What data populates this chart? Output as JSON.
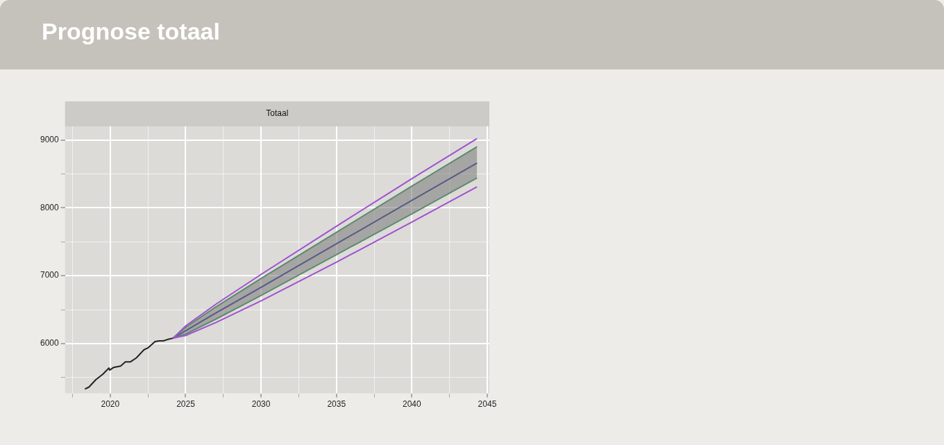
{
  "chart_data": {
    "type": "line",
    "title": "Prognose totaal",
    "subtitle": "Totaal",
    "xlim": [
      2017.0,
      2045.14
    ],
    "xticks": [
      {
        "value": 2017.5,
        "label": null
      },
      2020,
      {
        "value": 2022.5,
        "label": null
      },
      2025,
      {
        "value": 2027.5,
        "label": null
      },
      2030,
      {
        "value": 2032.5,
        "label": null
      },
      2035,
      {
        "value": 2037.5,
        "label": null
      },
      2040,
      {
        "value": 2042.5,
        "label": null
      },
      2045
    ],
    "ylim": [
      5267,
      9201
    ],
    "yticks": [
      {
        "value": 5500,
        "label": null
      },
      6000,
      {
        "value": 6500,
        "label": null
      },
      7000,
      {
        "value": 7500,
        "label": null
      },
      8000,
      {
        "value": 8500,
        "label": null
      },
      9000
    ],
    "grid": true,
    "legend": false,
    "marker": "none",
    "line_style": "solid",
    "series": [
      {
        "color": "#222222",
        "x": [
          2018.32,
          2018.59,
          2019.05,
          2019.51,
          2019.78,
          2019.91,
          2019.96,
          2020.23,
          2020.69,
          2021.0,
          2021.33,
          2021.73,
          2022.24,
          2022.52,
          2022.97,
          2023.25,
          2023.52,
          2023.79,
          2024.16
        ],
        "values": [
          5330,
          5360,
          5470,
          5550,
          5610,
          5640,
          5610,
          5650,
          5670,
          5730,
          5730,
          5790,
          5910,
          5940,
          6030,
          6040,
          6040,
          6060,
          6080
        ]
      },
      {
        "color": "#a050d0",
        "x": [
          2024.16,
          2025,
          2027,
          2030,
          2035,
          2040,
          2044.32
        ],
        "values": [
          6080,
          6260,
          6580,
          7020,
          7730,
          8430,
          9020
        ]
      },
      {
        "color": "#a050d0",
        "x": [
          2024.16,
          2025,
          2027,
          2030,
          2035,
          2040,
          2044.32
        ],
        "values": [
          6080,
          6120,
          6310,
          6630,
          7200,
          7790,
          8310
        ]
      },
      {
        "color": "#5e8a6e",
        "x": [
          2024.16,
          2025,
          2027,
          2030,
          2035,
          2040,
          2044.32
        ],
        "values": [
          6080,
          6240,
          6540,
          6960,
          7640,
          8320,
          8900
        ]
      },
      {
        "color": "#5e8a6e",
        "x": [
          2024.16,
          2025,
          2027,
          2030,
          2035,
          2040,
          2044.32
        ],
        "values": [
          6080,
          6140,
          6360,
          6710,
          7310,
          7910,
          8440
        ]
      },
      {
        "color": "#33339a",
        "x": [
          2024.16,
          2025,
          2027,
          2030,
          2035,
          2040,
          2044.32
        ],
        "values": [
          6080,
          6190,
          6450,
          6830,
          7470,
          8110,
          8660
        ],
        "lower": [
          6080,
          6140,
          6360,
          6710,
          7310,
          7910,
          8440
        ],
        "upper": [
          6080,
          6240,
          6540,
          6960,
          7640,
          8320,
          8900
        ]
      }
    ]
  }
}
